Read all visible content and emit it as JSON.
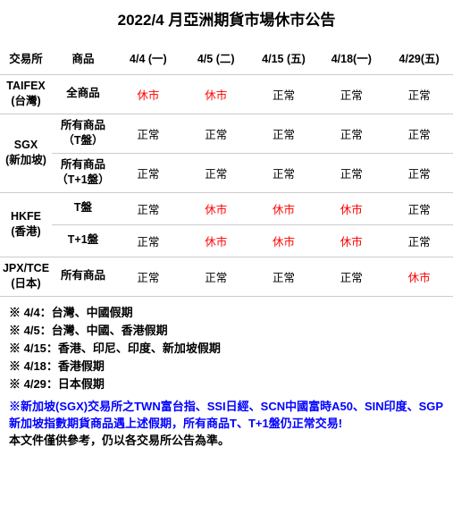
{
  "title_text": "2022/4 月亞洲期貨市場休市公告",
  "title_fontsize": 17,
  "border_color": "#cccccc",
  "normal_color": "#000000",
  "closed_color": "#ff0000",
  "notes_fontsize": 13,
  "footnote_fontsize": 13,
  "columns": [
    "交易所",
    "商品",
    "4/4 (一)",
    "4/5 (二)",
    "4/15 (五)",
    "4/18(一)",
    "4/29(五)"
  ],
  "labels": {
    "closed": "休市",
    "normal": "正常"
  },
  "rows": [
    {
      "exchange": "TAIFEX",
      "country": "(台灣)",
      "product": "全商品",
      "rowspan": 1,
      "cells": [
        "closed",
        "closed",
        "normal",
        "normal",
        "normal"
      ]
    },
    {
      "exchange": "SGX",
      "country": "(新加坡)",
      "product": "所有商品\n（T盤）",
      "rowspan": 2,
      "cells": [
        "normal",
        "normal",
        "normal",
        "normal",
        "normal"
      ]
    },
    {
      "product": "所有商品\n（T+1盤）",
      "cells": [
        "normal",
        "normal",
        "normal",
        "normal",
        "normal"
      ]
    },
    {
      "exchange": "HKFE",
      "country": "(香港)",
      "product": "T盤",
      "rowspan": 2,
      "cells": [
        "normal",
        "closed",
        "closed",
        "closed",
        "normal"
      ]
    },
    {
      "product": "T+1盤",
      "cells": [
        "normal",
        "closed",
        "closed",
        "closed",
        "normal"
      ]
    },
    {
      "exchange": "JPX/TCE",
      "country": "(日本)",
      "product": "所有商品",
      "rowspan": 1,
      "cells": [
        "normal",
        "normal",
        "normal",
        "normal",
        "closed"
      ]
    }
  ],
  "notes": [
    "※ 4/4：台灣、中國假期",
    "※ 4/5：台灣、中國、香港假期",
    "※ 4/15：香港、印尼、印度、新加坡假期",
    "※ 4/18：香港假期",
    "※ 4/29：日本假期"
  ],
  "footnote_hi": "※新加坡(SGX)交易所之TWN富台指、SSI日經、SCN中國富時A50、SIN印度、SGP新加坡指數期貨商品遇上述假期，所有商品T、T+1盤仍正常交易!",
  "footnote_plain": "本文件僅供參考，仍以各交易所公告為準。"
}
